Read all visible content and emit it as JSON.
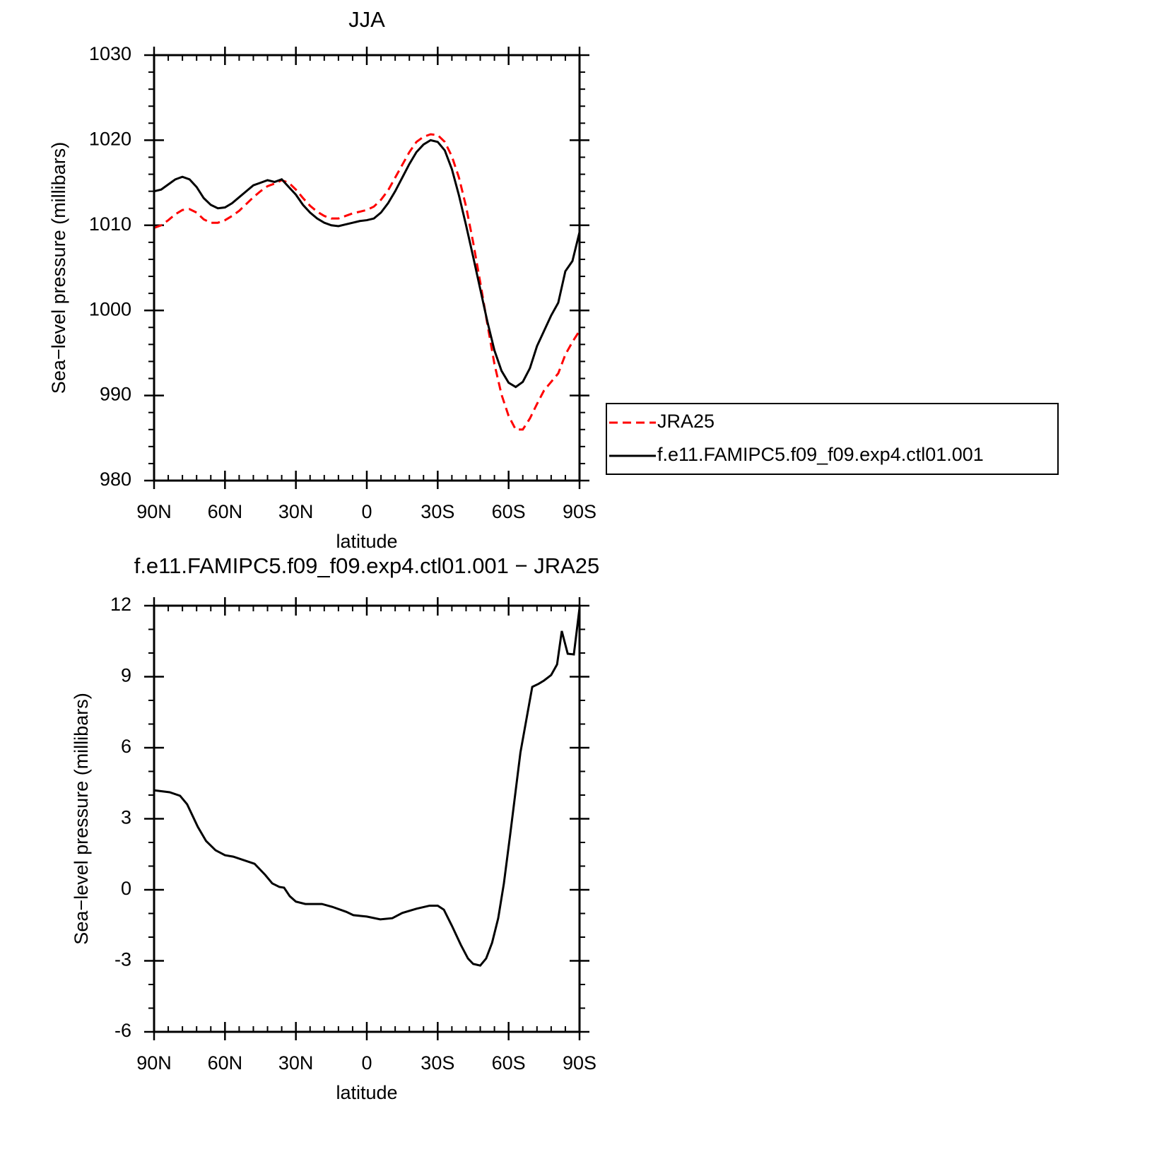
{
  "chart_data": [
    {
      "type": "line",
      "title": "JJA",
      "xlabel": "latitude",
      "ylabel": "Sea−level pressure (millibars)",
      "x": [
        90,
        87,
        84,
        81,
        78,
        75,
        72,
        69,
        66,
        63,
        60,
        57,
        54,
        51,
        48,
        45,
        42,
        39,
        36,
        33,
        30,
        27,
        24,
        21,
        18,
        15,
        12,
        9,
        6,
        3,
        0,
        -3,
        -6,
        -9,
        -12,
        -15,
        -18,
        -21,
        -24,
        -27,
        -30,
        -33,
        -36,
        -39,
        -42,
        -45,
        -48,
        -51,
        -54,
        -57,
        -60,
        -63,
        -66,
        -69,
        -72,
        -75,
        -78,
        -81,
        -84,
        -87,
        -90
      ],
      "series": [
        {
          "name": "JRA25",
          "color": "#ff0000",
          "linestyle": "dashed",
          "values": [
            1009.7,
            1010.0,
            1010.6,
            1011.3,
            1011.8,
            1011.9,
            1011.5,
            1010.7,
            1010.3,
            1010.3,
            1010.6,
            1011.1,
            1011.7,
            1012.5,
            1013.3,
            1014.0,
            1014.6,
            1014.9,
            1015.3,
            1015.0,
            1014.2,
            1013.2,
            1012.3,
            1011.6,
            1011.1,
            1010.8,
            1010.8,
            1011.1,
            1011.4,
            1011.6,
            1011.8,
            1012.2,
            1013.0,
            1014.1,
            1015.6,
            1017.1,
            1018.6,
            1019.8,
            1020.4,
            1020.7,
            1020.6,
            1019.8,
            1018.1,
            1015.6,
            1012.2,
            1008.0,
            1003.3,
            998.4,
            993.7,
            990.1,
            987.6,
            986.0,
            986.0,
            987.3,
            989.0,
            990.6,
            991.6,
            992.6,
            994.8,
            996.3,
            997.6
          ]
        },
        {
          "name": "f.e11.FAMIPC5.f09_f09.exp4.ctl01.001",
          "color": "#000000",
          "linestyle": "solid",
          "values": [
            1014.0,
            1014.2,
            1014.8,
            1015.4,
            1015.7,
            1015.4,
            1014.5,
            1013.2,
            1012.4,
            1012.0,
            1012.1,
            1012.6,
            1013.3,
            1014.0,
            1014.7,
            1015.0,
            1015.3,
            1015.1,
            1015.4,
            1014.5,
            1013.6,
            1012.4,
            1011.5,
            1010.8,
            1010.3,
            1010.0,
            1009.9,
            1010.1,
            1010.3,
            1010.5,
            1010.6,
            1010.8,
            1011.5,
            1012.6,
            1014.0,
            1015.6,
            1017.2,
            1018.6,
            1019.5,
            1020.0,
            1019.8,
            1018.8,
            1016.6,
            1013.5,
            1010.0,
            1006.3,
            1002.5,
            998.7,
            995.3,
            992.9,
            991.5,
            991.0,
            991.6,
            993.2,
            995.8,
            997.6,
            999.4,
            1000.9,
            1004.6,
            1005.8,
            1009.2
          ]
        }
      ],
      "xlim": [
        90,
        -90
      ],
      "xticks": [
        {
          "value": 90,
          "label": "90N"
        },
        {
          "value": 60,
          "label": "60N"
        },
        {
          "value": 30,
          "label": "30N"
        },
        0,
        {
          "value": -30,
          "label": "30S"
        },
        {
          "value": -60,
          "label": "60S"
        },
        {
          "value": -90,
          "label": "90S"
        }
      ],
      "ylim": [
        980,
        1030
      ],
      "yticks": [
        980,
        990,
        1000,
        1010,
        1020,
        1030
      ],
      "legend": "right"
    },
    {
      "type": "line",
      "title": "f.e11.FAMIPC5.f09_f09.exp4.ctl01.001 − JRA25",
      "xlabel": "latitude",
      "ylabel": "Sea−level pressure (millibars)",
      "x": [
        90,
        83.4,
        79,
        76,
        71.5,
        68,
        64,
        60,
        56.5,
        47.5,
        43,
        40,
        37,
        35,
        32.6,
        30,
        26,
        22,
        19,
        14.6,
        8.7,
        5.7,
        0,
        -5.7,
        -10.8,
        -15,
        -21,
        -26.6,
        -30,
        -32.6,
        -36,
        -39.8,
        -42.8,
        -45,
        -48,
        -50.5,
        -53,
        -55.6,
        -58,
        -60.7,
        -65,
        -70,
        -72.7,
        -75,
        -78,
        -80.5,
        -82.5,
        -85,
        -87.6,
        -90
      ],
      "values": [
        4.2,
        4.12,
        3.97,
        3.61,
        2.66,
        2.06,
        1.67,
        1.46,
        1.4,
        1.1,
        0.63,
        0.27,
        0.12,
        0.09,
        -0.27,
        -0.5,
        -0.6,
        -0.6,
        -0.6,
        -0.72,
        -0.93,
        -1.07,
        -1.13,
        -1.25,
        -1.2,
        -0.98,
        -0.8,
        -0.67,
        -0.67,
        -0.84,
        -1.52,
        -2.33,
        -2.9,
        -3.13,
        -3.2,
        -2.9,
        -2.24,
        -1.2,
        0.27,
        2.36,
        5.8,
        8.57,
        8.7,
        8.84,
        9.07,
        9.52,
        10.93,
        9.97,
        9.94,
        11.9
      ],
      "color": "#000000",
      "xlim": [
        90,
        -90
      ],
      "xticks": [
        {
          "value": 90,
          "label": "90N"
        },
        {
          "value": 60,
          "label": "60N"
        },
        {
          "value": 30,
          "label": "30N"
        },
        0,
        {
          "value": -30,
          "label": "30S"
        },
        {
          "value": -60,
          "label": "60S"
        },
        {
          "value": -90,
          "label": "90S"
        }
      ],
      "ylim": [
        -6,
        12
      ],
      "yticks": [
        -6,
        -3,
        0,
        3,
        6,
        9,
        12
      ]
    }
  ]
}
